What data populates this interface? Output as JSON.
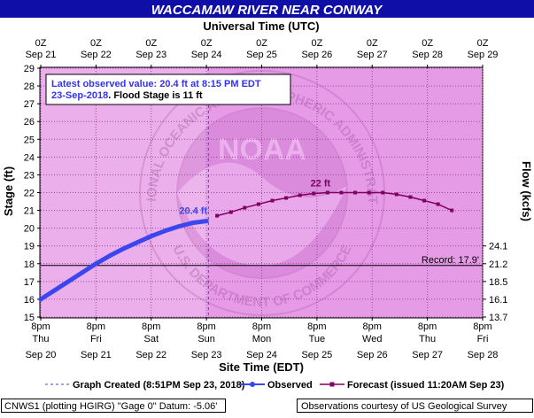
{
  "title": "WACCAMAW RIVER NEAR CONWAY",
  "colors": {
    "title_bg": "#0f0fa8",
    "plot_bg": "#e69be6",
    "band_left": "#ebb0eb",
    "observed": "#3c46ee",
    "forecast": "#800060",
    "record_line": "#000000",
    "annotation_text": "#3333ee"
  },
  "annotation": {
    "line1": "Latest observed value: 20.4 ft at 8:15 PM EDT",
    "line2a": "23-Sep-2018",
    "line2b": ".  Flood Stage is 11 ft"
  },
  "watermark": {
    "arc_text": "NATIONAL OCEANIC AND ATMOSPHERIC ADMINISTRATION",
    "bottom_text": "U.S. DEPARTMENT OF COMMERCE",
    "center_text": "NOAA"
  },
  "labels": {
    "observed_peak": "20.4 ft",
    "forecast_peak": "22 ft",
    "record": "Record: 17.9'"
  },
  "legend": {
    "graph_created": "Graph Created (8:51PM Sep 23, 2018)",
    "observed": "Observed",
    "forecast": "Forecast (issued 11:20AM Sep 23)"
  },
  "footer": {
    "left": "CNWS1 (plotting HGIRG) \"Gage 0\" Datum: -5.06'",
    "right": "Observations courtesy of US Geological Survey"
  },
  "chart_data": {
    "type": "line",
    "title": "WACCAMAW RIVER NEAR CONWAY",
    "xlabel": "Site Time (EDT)",
    "xlabel_top": "Universal Time (UTC)",
    "ylabel": "Stage (ft)",
    "ylabel_right": "Flow (kcfs)",
    "ylim": [
      15,
      29
    ],
    "yticks": [
      15,
      16,
      17,
      18,
      19,
      20,
      21,
      22,
      23,
      24,
      25,
      26,
      27,
      28,
      29
    ],
    "x_start": "Sep 20 8pm",
    "x_end": "Sep 28 8pm",
    "bottom_ticks": [
      {
        "time": "8pm",
        "day": "Thu",
        "date": "Sep 20"
      },
      {
        "time": "8pm",
        "day": "Fri",
        "date": "Sep 21"
      },
      {
        "time": "8pm",
        "day": "Sat",
        "date": "Sep 22"
      },
      {
        "time": "8pm",
        "day": "Sun",
        "date": "Sep 23"
      },
      {
        "time": "8pm",
        "day": "Mon",
        "date": "Sep 24"
      },
      {
        "time": "8pm",
        "day": "Tue",
        "date": "Sep 25"
      },
      {
        "time": "8pm",
        "day": "Wed",
        "date": "Sep 26"
      },
      {
        "time": "8pm",
        "day": "Thu",
        "date": "Sep 27"
      },
      {
        "time": "8pm",
        "day": "Fri",
        "date": "Sep 28"
      }
    ],
    "top_ticks": [
      {
        "time": "0Z",
        "date": "Sep 21"
      },
      {
        "time": "0Z",
        "date": "Sep 22"
      },
      {
        "time": "0Z",
        "date": "Sep 23"
      },
      {
        "time": "0Z",
        "date": "Sep 24"
      },
      {
        "time": "0Z",
        "date": "Sep 25"
      },
      {
        "time": "0Z",
        "date": "Sep 26"
      },
      {
        "time": "0Z",
        "date": "Sep 27"
      },
      {
        "time": "0Z",
        "date": "Sep 28"
      },
      {
        "time": "0Z",
        "date": "Sep 29"
      }
    ],
    "flow_ticks": [
      {
        "stage": 15,
        "flow": "13.7"
      },
      {
        "stage": 16,
        "flow": "16.1"
      },
      {
        "stage": 17,
        "flow": "18.5"
      },
      {
        "stage": 18,
        "flow": "21.2"
      },
      {
        "stage": 19,
        "flow": "24.1"
      }
    ],
    "record_stage": 17.9,
    "graph_created": "Sep 23 8:51pm",
    "series": [
      {
        "name": "Observed",
        "x": [
          "Sep 20 8pm",
          "Sep 21 2am",
          "Sep 21 8am",
          "Sep 21 2pm",
          "Sep 21 8pm",
          "Sep 22 2am",
          "Sep 22 8am",
          "Sep 22 2pm",
          "Sep 22 8pm",
          "Sep 23 2am",
          "Sep 23 8am",
          "Sep 23 2pm",
          "Sep 23 8pm"
        ],
        "y": [
          16.0,
          16.5,
          17.0,
          17.5,
          18.0,
          18.45,
          18.85,
          19.2,
          19.55,
          19.85,
          20.1,
          20.3,
          20.4
        ]
      },
      {
        "name": "Forecast (issued 11:20AM Sep 23)",
        "x": [
          "Sep 23 8pm",
          "Sep 24 2am",
          "Sep 24 8am",
          "Sep 24 2pm",
          "Sep 24 8pm",
          "Sep 25 2am",
          "Sep 25 8am",
          "Sep 25 2pm",
          "Sep 25 8pm",
          "Sep 26 2am",
          "Sep 26 8am",
          "Sep 26 2pm",
          "Sep 26 8pm",
          "Sep 27 2am",
          "Sep 27 8am",
          "Sep 27 2pm",
          "Sep 27 8pm",
          "Sep 28 2am"
        ],
        "y": [
          20.7,
          20.9,
          21.15,
          21.35,
          21.55,
          21.7,
          21.85,
          21.95,
          22.0,
          22.0,
          22.0,
          22.0,
          22.0,
          21.9,
          21.75,
          21.55,
          21.35,
          21.0
        ]
      }
    ]
  }
}
